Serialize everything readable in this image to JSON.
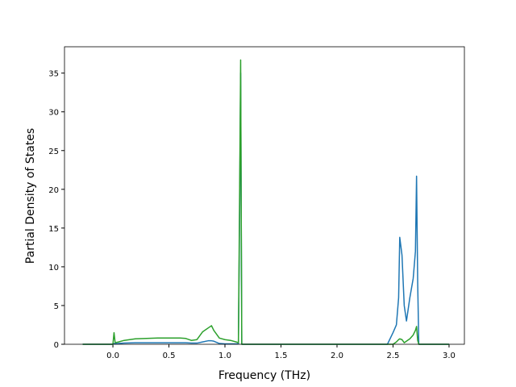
{
  "chart_data": {
    "type": "line",
    "xlabel": "Frequency (THz)",
    "ylabel": "Partial Density of States",
    "x": [
      -0.27,
      0.0,
      0.01,
      0.02,
      0.05,
      0.1,
      0.2,
      0.3,
      0.4,
      0.5,
      0.6,
      0.65,
      0.7,
      0.75,
      0.8,
      0.85,
      0.88,
      0.9,
      0.95,
      1.0,
      1.05,
      1.1,
      1.12,
      1.13,
      1.14,
      1.15,
      1.16,
      1.5,
      2.0,
      2.45,
      2.5,
      2.53,
      2.55,
      2.56,
      2.58,
      2.6,
      2.62,
      2.65,
      2.68,
      2.7,
      2.71,
      2.72,
      2.73,
      3.0
    ],
    "series": [
      {
        "color": "#1f77b4",
        "values": [
          0,
          0,
          0.1,
          0.05,
          0.1,
          0.15,
          0.2,
          0.2,
          0.2,
          0.2,
          0.2,
          0.2,
          0.15,
          0.15,
          0.3,
          0.45,
          0.45,
          0.4,
          0.1,
          0.05,
          0.05,
          0.05,
          0.05,
          15,
          35,
          0,
          0,
          0,
          0,
          0,
          1.5,
          2.5,
          6,
          13.8,
          11.5,
          5,
          3,
          6,
          8.5,
          12,
          21.7,
          8,
          0,
          0
        ]
      },
      {
        "color": "#2ca02c",
        "values": [
          0,
          0,
          1.5,
          0.2,
          0.3,
          0.5,
          0.7,
          0.75,
          0.8,
          0.8,
          0.8,
          0.75,
          0.5,
          0.6,
          1.6,
          2.1,
          2.4,
          1.8,
          0.8,
          0.6,
          0.5,
          0.3,
          0.2,
          18,
          36.7,
          0,
          0,
          0,
          0,
          0,
          0,
          0.3,
          0.6,
          0.7,
          0.6,
          0.2,
          0.4,
          0.7,
          1.2,
          1.8,
          2.3,
          0.5,
          0,
          0
        ]
      }
    ],
    "xlim": [
      -0.432,
      3.137
    ],
    "ylim": [
      0,
      38.4
    ],
    "xticks": [
      {
        "value": 0,
        "label": "0.0"
      },
      0.5,
      {
        "value": 1,
        "label": "1.0"
      },
      1.5,
      {
        "value": 2,
        "label": "2.0"
      },
      2.5,
      {
        "value": 3,
        "label": "3.0"
      }
    ],
    "yticks": [
      0,
      5,
      10,
      15,
      20,
      25,
      30,
      35
    ]
  }
}
